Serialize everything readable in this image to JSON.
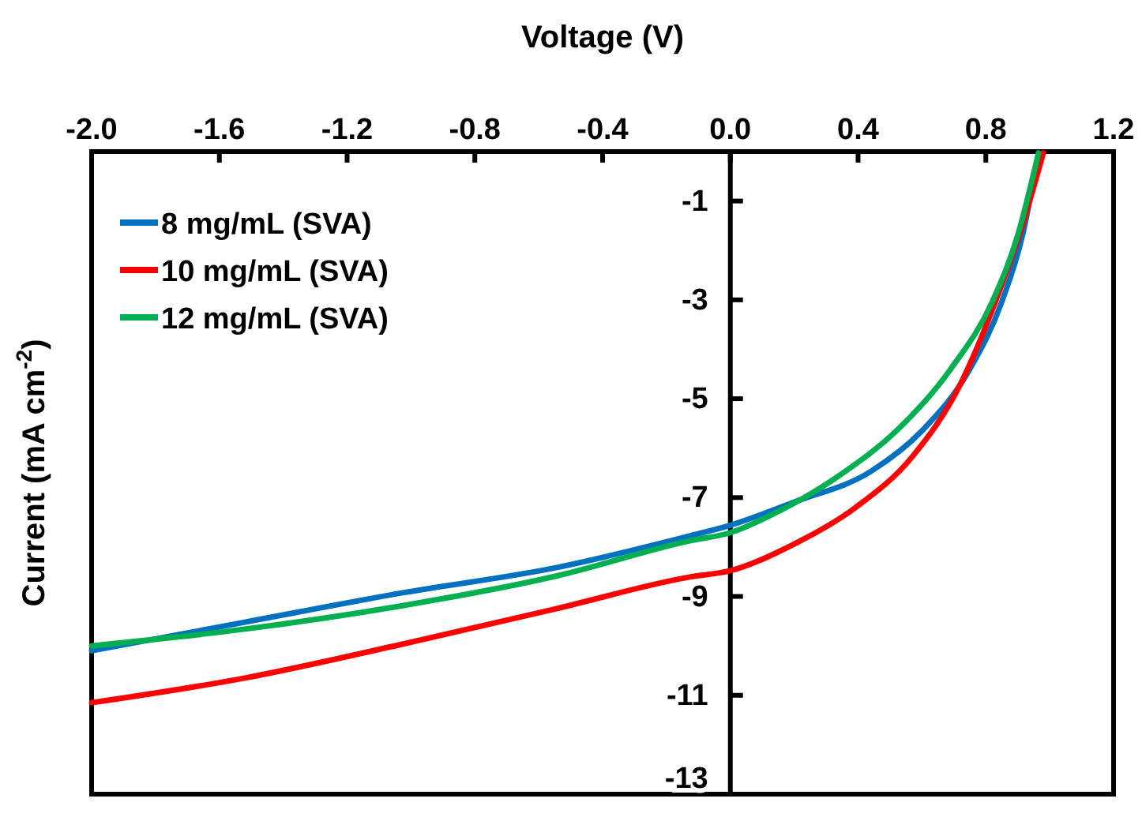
{
  "chart_data": {
    "type": "line",
    "xlabel": "Voltage (V)",
    "ylabel": "Current (mA cm$^{-2}$)",
    "xlim": [
      -2,
      1.2
    ],
    "ylim": [
      -13,
      0
    ],
    "xticks": [
      {
        "value": -2,
        "label": "-2.0"
      },
      {
        "value": -1.6,
        "label": "-1.6"
      },
      {
        "value": -1.2,
        "label": "-1.2"
      },
      {
        "value": -0.8,
        "label": "-0.8"
      },
      {
        "value": -0.4,
        "label": "-0.4"
      },
      {
        "value": 0,
        "label": "0.0"
      },
      {
        "value": 0.4,
        "label": "0.4"
      },
      {
        "value": 0.8,
        "label": "0.8"
      },
      {
        "value": 1.2,
        "label": "1.2"
      }
    ],
    "yticks": [
      -1,
      -3,
      -5,
      -7,
      -9,
      -11,
      -13
    ],
    "legend": "top left",
    "grid": false,
    "marker": "none",
    "line_style": "solid",
    "series": [
      {
        "name": "8 mg/mL (SVA)",
        "color": "#0070c0",
        "x": [
          -2,
          -1.52,
          -1.03,
          -0.54,
          -0.13,
          0,
          0.2,
          0.44,
          0.6,
          0.75,
          0.85,
          0.915,
          0.965
        ],
        "values": [
          -10.1,
          -9.52,
          -8.93,
          -8.41,
          -7.78,
          -7.56,
          -7.09,
          -6.47,
          -5.65,
          -4.4,
          -3.04,
          -1.69,
          -0.03
        ]
      },
      {
        "name": "10 mg/mL (SVA)",
        "color": "#ff0000",
        "x": [
          -2,
          -1.52,
          -1.03,
          -0.54,
          -0.13,
          0,
          0.2,
          0.39,
          0.57,
          0.72,
          0.83,
          0.915,
          0.98
        ],
        "values": [
          -11.15,
          -10.65,
          -9.97,
          -9.24,
          -8.61,
          -8.48,
          -7.94,
          -7.21,
          -6.17,
          -4.71,
          -3.04,
          -1.48,
          -0.03
        ]
      },
      {
        "name": "12 mg/mL (SVA)",
        "color": "#00b050",
        "x": [
          -2,
          -1.52,
          -1.03,
          -0.54,
          -0.13,
          0,
          0.16,
          0.36,
          0.52,
          0.69,
          0.82,
          0.9,
          0.965
        ],
        "values": [
          -10.0,
          -9.66,
          -9.19,
          -8.58,
          -7.88,
          -7.71,
          -7.25,
          -6.47,
          -5.65,
          -4.4,
          -3.04,
          -1.69,
          -0.03
        ]
      }
    ]
  }
}
